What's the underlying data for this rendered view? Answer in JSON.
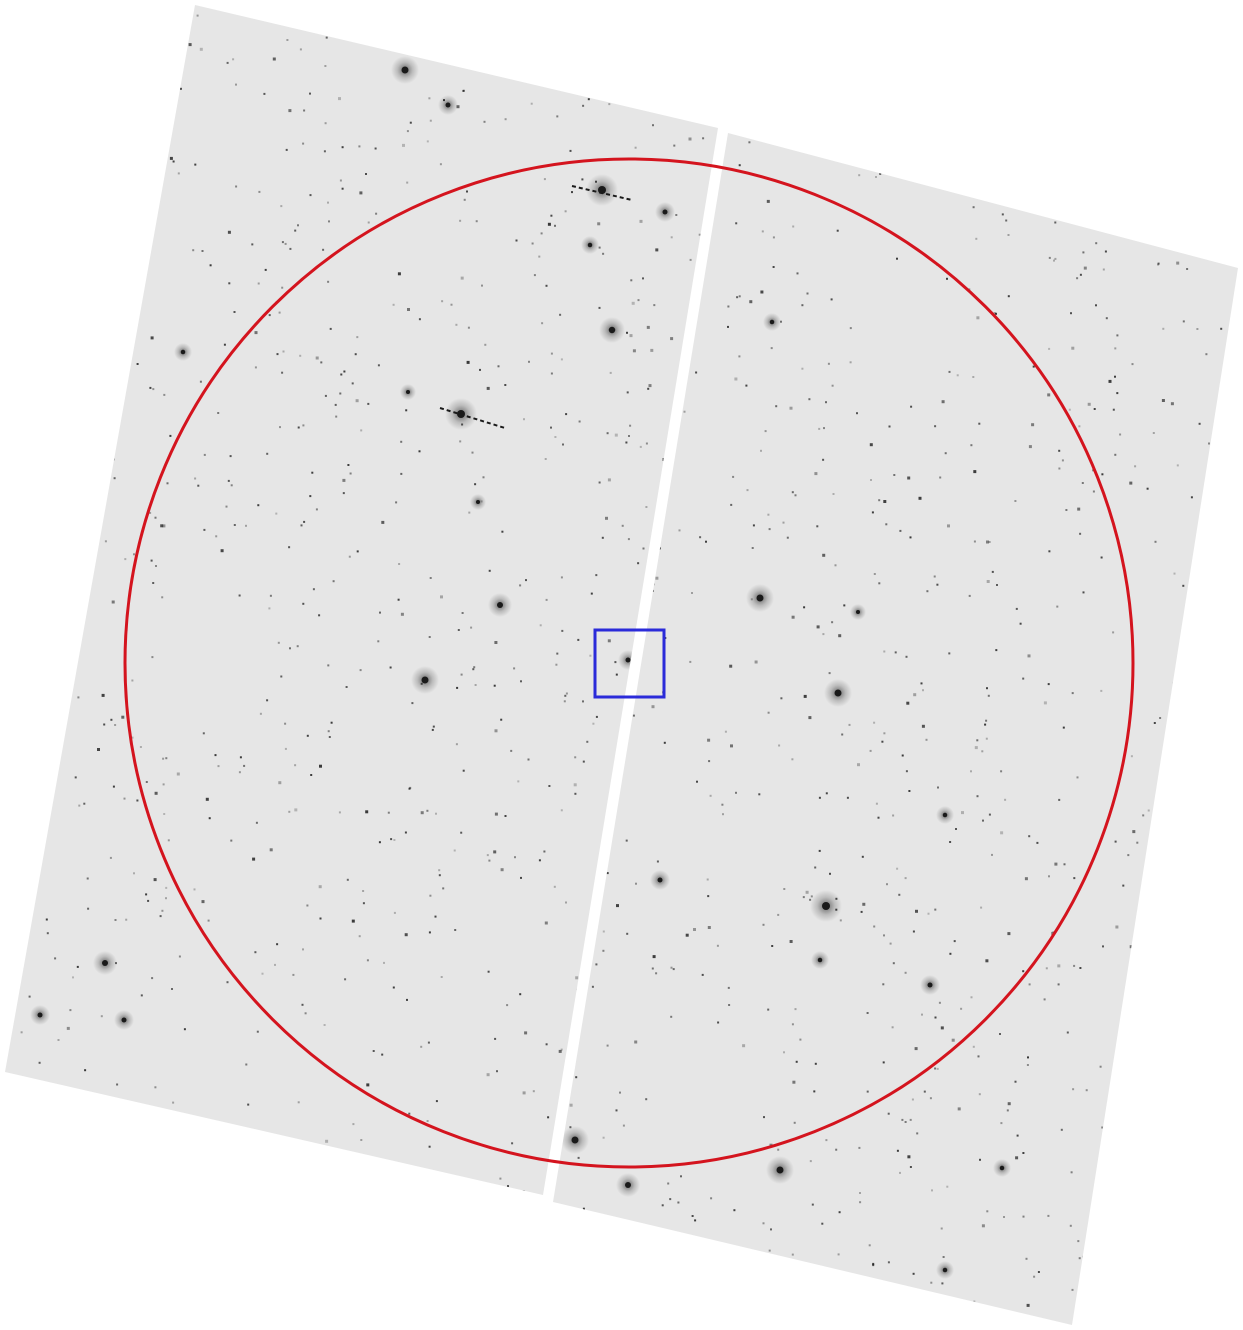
{
  "image": {
    "description_kind": "inverted greyscale sky field image from a two-detector mosaic",
    "background_color": "#ffffff",
    "detector_color": "#e6e6e6",
    "star_color": "#1a1a1a",
    "region_circle_color": "#d4141e",
    "target_box_color": "#2b2bd9",
    "detector_count": 2
  }
}
